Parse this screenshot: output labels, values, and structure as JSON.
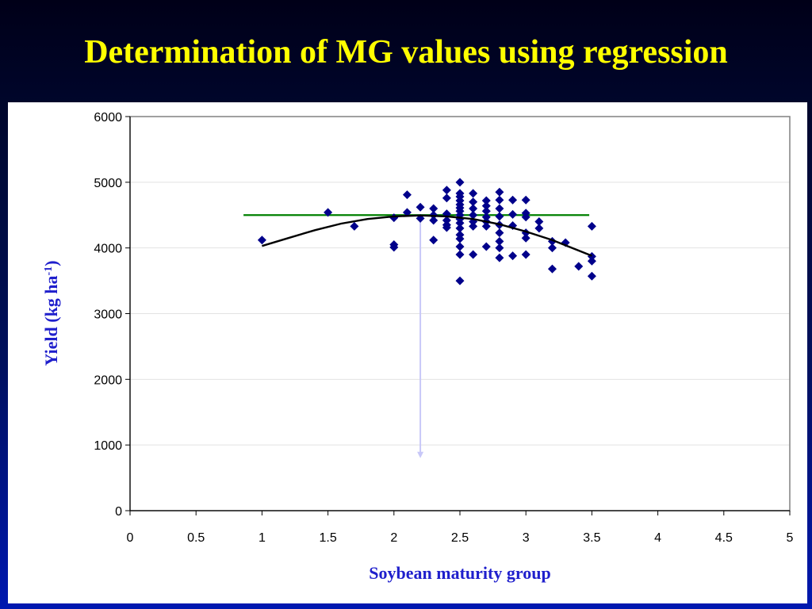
{
  "slide": {
    "title": "Determination of MG values using regression",
    "title_color": "#ffff00"
  },
  "chart_data": {
    "type": "scatter",
    "xlabel": "Soybean maturity group",
    "ylabel_main": "Yield (kg ha",
    "ylabel_sup": "-1",
    "ylabel_close": ")",
    "xlim": [
      0,
      5
    ],
    "ylim": [
      0,
      6000
    ],
    "x_ticks": [
      0,
      0.5,
      1,
      1.5,
      2,
      2.5,
      3,
      3.5,
      4,
      4.5,
      5
    ],
    "x_tick_labels": [
      "0",
      "0.5",
      "1",
      "1.5",
      "2",
      "2.5",
      "3",
      "3.5",
      "4",
      "4.5",
      "5"
    ],
    "y_ticks": [
      0,
      1000,
      2000,
      3000,
      4000,
      5000,
      6000
    ],
    "y_tick_labels": [
      "0",
      "1000",
      "2000",
      "3000",
      "4000",
      "5000",
      "6000"
    ],
    "grid": "horizontal",
    "point_color": "#00008b",
    "points": [
      [
        1.0,
        4120
      ],
      [
        1.5,
        4540
      ],
      [
        1.7,
        4330
      ],
      [
        2.0,
        4050
      ],
      [
        2.0,
        4010
      ],
      [
        2.0,
        4460
      ],
      [
        2.1,
        4810
      ],
      [
        2.1,
        4540
      ],
      [
        2.2,
        4620
      ],
      [
        2.2,
        4450
      ],
      [
        2.3,
        4600
      ],
      [
        2.3,
        4500
      ],
      [
        2.3,
        4420
      ],
      [
        2.3,
        4120
      ],
      [
        2.4,
        4880
      ],
      [
        2.4,
        4760
      ],
      [
        2.4,
        4520
      ],
      [
        2.4,
        4420
      ],
      [
        2.4,
        4350
      ],
      [
        2.4,
        4310
      ],
      [
        2.5,
        5000
      ],
      [
        2.5,
        4830
      ],
      [
        2.5,
        4780
      ],
      [
        2.5,
        4720
      ],
      [
        2.5,
        4660
      ],
      [
        2.5,
        4610
      ],
      [
        2.5,
        4560
      ],
      [
        2.5,
        4500
      ],
      [
        2.5,
        4440
      ],
      [
        2.5,
        4380
      ],
      [
        2.5,
        4300
      ],
      [
        2.5,
        4200
      ],
      [
        2.5,
        4140
      ],
      [
        2.5,
        4020
      ],
      [
        2.5,
        3900
      ],
      [
        2.5,
        3500
      ],
      [
        2.6,
        4830
      ],
      [
        2.6,
        4700
      ],
      [
        2.6,
        4600
      ],
      [
        2.6,
        4500
      ],
      [
        2.6,
        4400
      ],
      [
        2.6,
        4330
      ],
      [
        2.6,
        3900
      ],
      [
        2.7,
        4720
      ],
      [
        2.7,
        4640
      ],
      [
        2.7,
        4560
      ],
      [
        2.7,
        4470
      ],
      [
        2.7,
        4400
      ],
      [
        2.7,
        4330
      ],
      [
        2.7,
        4020
      ],
      [
        2.8,
        4850
      ],
      [
        2.8,
        4730
      ],
      [
        2.8,
        4600
      ],
      [
        2.8,
        4480
      ],
      [
        2.8,
        4350
      ],
      [
        2.8,
        4230
      ],
      [
        2.8,
        4100
      ],
      [
        2.8,
        4000
      ],
      [
        2.8,
        3850
      ],
      [
        2.9,
        4730
      ],
      [
        2.9,
        4510
      ],
      [
        2.9,
        4340
      ],
      [
        2.9,
        3880
      ],
      [
        3.0,
        4730
      ],
      [
        3.0,
        4530
      ],
      [
        3.0,
        4470
      ],
      [
        3.0,
        4230
      ],
      [
        3.0,
        4150
      ],
      [
        3.0,
        3900
      ],
      [
        3.1,
        4400
      ],
      [
        3.1,
        4300
      ],
      [
        3.2,
        4100
      ],
      [
        3.2,
        4000
      ],
      [
        3.2,
        3680
      ],
      [
        3.3,
        4080
      ],
      [
        3.4,
        3720
      ],
      [
        3.5,
        4330
      ],
      [
        3.5,
        3870
      ],
      [
        3.5,
        3800
      ],
      [
        3.5,
        3570
      ]
    ],
    "trend_curve": {
      "color": "#000000",
      "x_range": [
        1.0,
        3.5
      ],
      "points": [
        [
          1.0,
          4030
        ],
        [
          1.2,
          4150
        ],
        [
          1.4,
          4270
        ],
        [
          1.6,
          4370
        ],
        [
          1.8,
          4440
        ],
        [
          2.0,
          4480
        ],
        [
          2.2,
          4495
        ],
        [
          2.4,
          4480
        ],
        [
          2.6,
          4440
        ],
        [
          2.8,
          4360
        ],
        [
          3.0,
          4250
        ],
        [
          3.2,
          4120
        ],
        [
          3.4,
          3960
        ],
        [
          3.5,
          3880
        ]
      ]
    },
    "reference_line": {
      "y": 4500,
      "x_range": [
        0.86,
        3.48
      ],
      "color": "#008000"
    },
    "arrow": {
      "x": 2.2,
      "y_from": 4500,
      "y_to": 800,
      "color": "#c8c8f8"
    },
    "xlabel_color": "#1f1fcc",
    "ylabel_color": "#1f1fcc"
  }
}
